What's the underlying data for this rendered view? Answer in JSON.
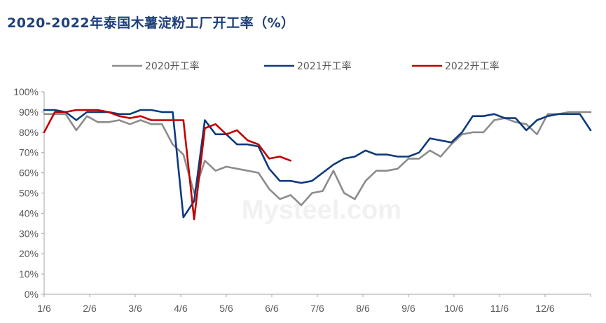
{
  "chart_data": {
    "type": "line",
    "title": "2020-2022年泰国木薯淀粉工厂开工率（%）",
    "xlabel": "",
    "ylabel": "",
    "ylim": [
      0,
      100
    ],
    "yticks": [
      "0%",
      "10%",
      "20%",
      "30%",
      "40%",
      "50%",
      "60%",
      "70%",
      "80%",
      "90%",
      "100%"
    ],
    "xticks": [
      "1/6",
      "2/6",
      "3/6",
      "4/6",
      "5/6",
      "6/6",
      "7/6",
      "8/6",
      "9/6",
      "10/6",
      "11/6",
      "12/6"
    ],
    "weeks_total": 52,
    "legend_position": "top",
    "grid": false,
    "watermark": "Mysteel.com",
    "series": [
      {
        "name": "2020开工率",
        "color": "#8c8c8c",
        "values": [
          89,
          89,
          89,
          81,
          88,
          85,
          85,
          86,
          84,
          86,
          84,
          84,
          74,
          69,
          50,
          66,
          61,
          63,
          62,
          61,
          60,
          52,
          47,
          49,
          44,
          50,
          51,
          61,
          50,
          47,
          56,
          61,
          61,
          62,
          67,
          67,
          71,
          68,
          74,
          79,
          80,
          80,
          86,
          87,
          85,
          84,
          79,
          89,
          89,
          90,
          90,
          90
        ]
      },
      {
        "name": "2021开工率",
        "color": "#0d3a7c",
        "values": [
          91,
          91,
          90,
          86,
          90,
          90,
          90,
          89,
          89,
          91,
          91,
          90,
          90,
          38,
          46,
          86,
          79,
          79,
          74,
          74,
          73,
          62,
          56,
          56,
          55,
          56,
          60,
          64,
          67,
          68,
          71,
          69,
          69,
          68,
          68,
          70,
          77,
          76,
          75,
          80,
          88,
          88,
          89,
          87,
          87,
          81,
          86,
          88,
          89,
          89,
          89,
          81
        ]
      },
      {
        "name": "2022开工率",
        "color": "#c00000",
        "values": [
          80,
          90,
          90,
          91,
          91,
          91,
          90,
          88,
          87,
          88,
          86,
          86,
          86,
          86,
          37,
          82,
          84,
          79,
          81,
          76,
          74,
          67,
          68,
          66
        ]
      }
    ]
  }
}
